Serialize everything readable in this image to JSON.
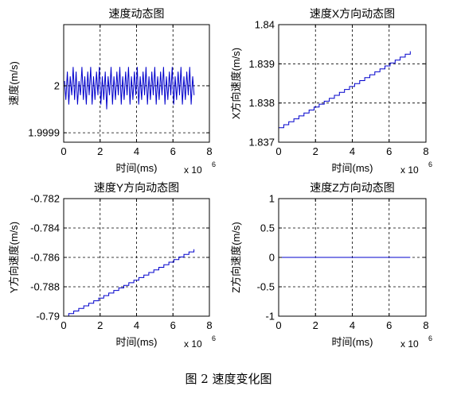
{
  "figure": {
    "caption": "图 2  速度变化图"
  },
  "chart_data": [
    {
      "type": "line",
      "title": "速度动态图",
      "xlabel": "时间(ms)",
      "ylabel": "速度(m/s)",
      "x_multiplier": "x 10",
      "x_multiplier_exp": "6",
      "xlim": [
        0,
        8
      ],
      "ylim": [
        1.99988,
        2.00013
      ],
      "xticks": [
        0,
        2,
        4,
        6,
        8
      ],
      "xtick_labels": [
        "0",
        "2",
        "4",
        "6",
        "8"
      ],
      "yticks": [
        1.9999,
        2
      ],
      "ytick_labels": [
        "1.9999",
        "2"
      ],
      "grid": true,
      "color": "#0000cc",
      "series": [
        {
          "x": [
            0.05,
            0.12,
            0.2,
            0.28,
            0.36,
            0.44,
            0.52,
            0.6,
            0.68,
            0.76,
            0.84,
            0.92,
            1.0,
            1.08,
            1.16,
            1.24,
            1.32,
            1.4,
            1.48,
            1.56,
            1.64,
            1.72,
            1.8,
            1.88,
            1.96,
            2.04,
            2.12,
            2.2,
            2.28,
            2.36,
            2.44,
            2.52,
            2.6,
            2.68,
            2.76,
            2.84,
            2.92,
            3.0,
            3.08,
            3.16,
            3.24,
            3.32,
            3.4,
            3.48,
            3.56,
            3.64,
            3.72,
            3.8,
            3.88,
            3.96,
            4.04,
            4.12,
            4.2,
            4.28,
            4.36,
            4.44,
            4.52,
            4.6,
            4.68,
            4.76,
            4.84,
            4.92,
            5.0,
            5.08,
            5.16,
            5.24,
            5.32,
            5.4,
            5.48,
            5.56,
            5.64,
            5.72,
            5.8,
            5.88,
            5.96,
            6.04,
            6.12,
            6.2,
            6.28,
            6.36,
            6.44,
            6.52,
            6.6,
            6.68,
            6.76,
            6.84,
            6.92,
            7.0,
            7.08,
            7.16
          ],
          "y": [
            2.00001,
            1.99997,
            2.00003,
            1.99996,
            2.00002,
            1.99998,
            2.00004,
            1.99997,
            2.00003,
            1.99996,
            2.00001,
            1.99998,
            2.00004,
            1.99997,
            2.00002,
            1.99996,
            2.00003,
            1.99998,
            2.00004,
            1.99996,
            2.00002,
            1.99997,
            2.00003,
            1.99998,
            2.00004,
            1.99996,
            2.00002,
            1.99997,
            2.00003,
            1.99995,
            2.00002,
            1.99998,
            2.00004,
            1.99996,
            2.00002,
            1.99997,
            2.00003,
            1.99998,
            2.00004,
            1.99996,
            2.00002,
            1.99997,
            2.00003,
            1.99998,
            2.00004,
            1.99996,
            2.00002,
            1.99997,
            2.00003,
            1.99998,
            2.00004,
            1.99996,
            2.00002,
            1.99997,
            2.00003,
            1.99998,
            2.00004,
            1.99996,
            2.00002,
            1.99997,
            2.00003,
            1.99998,
            2.00004,
            1.99996,
            2.00002,
            1.99997,
            2.00003,
            1.99998,
            2.00004,
            1.99996,
            2.00002,
            1.99997,
            2.00003,
            1.99998,
            2.00004,
            1.99996,
            2.00002,
            1.99997,
            2.00003,
            1.99998,
            2.00004,
            1.99996,
            2.00002,
            1.99997,
            2.00003,
            1.99998,
            2.00004,
            1.99996,
            2.00002,
            1.99998
          ]
        }
      ]
    },
    {
      "type": "line",
      "title": "速度X方向动态图",
      "xlabel": "时间(ms)",
      "ylabel": "X方向速度(m/s)",
      "x_multiplier": "x 10",
      "x_multiplier_exp": "6",
      "xlim": [
        0,
        8
      ],
      "ylim": [
        1.837,
        1.84
      ],
      "xticks": [
        0,
        2,
        4,
        6,
        8
      ],
      "xtick_labels": [
        "0",
        "2",
        "4",
        "6",
        "8"
      ],
      "yticks": [
        1.837,
        1.838,
        1.839,
        1.84
      ],
      "ytick_labels": [
        "1.837",
        "1.838",
        "1.839",
        "1.84"
      ],
      "grid": true,
      "color": "#0000cc",
      "series": [
        {
          "x": [
            0.0,
            7.15
          ],
          "y": [
            1.83737,
            1.83932
          ]
        }
      ]
    },
    {
      "type": "line",
      "title": "速度Y方向动态图",
      "xlabel": "时间(ms)",
      "ylabel": "Y方向速度(m/s)",
      "x_multiplier": "x 10",
      "x_multiplier_exp": "6",
      "xlim": [
        0,
        8
      ],
      "ylim": [
        -0.79,
        -0.782
      ],
      "xticks": [
        0,
        2,
        4,
        6,
        8
      ],
      "xtick_labels": [
        "0",
        "2",
        "4",
        "6",
        "8"
      ],
      "yticks": [
        -0.79,
        -0.788,
        -0.786,
        -0.784,
        -0.782
      ],
      "ytick_labels": [
        "-0.79",
        "-0.788",
        "-0.786",
        "-0.784",
        "-0.782"
      ],
      "grid": true,
      "color": "#0000cc",
      "series": [
        {
          "x": [
            0.0,
            7.15
          ],
          "y": [
            -0.79,
            -0.78545
          ]
        }
      ]
    },
    {
      "type": "line",
      "title": "速度Z方向动态图",
      "xlabel": "时间(ms)",
      "ylabel": "Z方向速度(m/s)",
      "x_multiplier": "x 10",
      "x_multiplier_exp": "6",
      "xlim": [
        0,
        8
      ],
      "ylim": [
        -1,
        1
      ],
      "xticks": [
        0,
        2,
        4,
        6,
        8
      ],
      "xtick_labels": [
        "0",
        "2",
        "4",
        "6",
        "8"
      ],
      "yticks": [
        -1,
        -0.5,
        0,
        0.5,
        1
      ],
      "ytick_labels": [
        "-1",
        "-0.5",
        "0",
        "0.5",
        "1"
      ],
      "grid": true,
      "color": "#0000cc",
      "series": [
        {
          "x": [
            0.0,
            7.15
          ],
          "y": [
            0,
            0
          ]
        }
      ]
    }
  ]
}
